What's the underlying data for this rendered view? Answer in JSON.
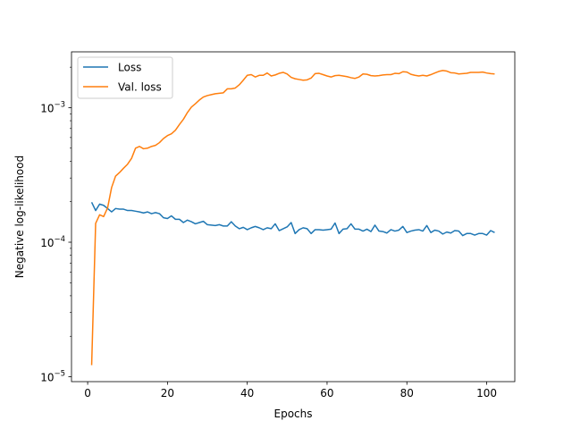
{
  "chart_data": {
    "type": "line",
    "title": "",
    "xlabel": "Epochs",
    "ylabel": "Negative log-likelihood",
    "yscale": "log",
    "xlim": [
      -4.05,
      107.05
    ],
    "ylim": [
      9.2e-06,
      0.0026
    ],
    "xticks": [
      0,
      20,
      40,
      60,
      80,
      100
    ],
    "yticks": [
      {
        "value": 1e-05,
        "base": "10",
        "exp": "−5"
      },
      {
        "value": 0.0001,
        "base": "10",
        "exp": "−4"
      },
      {
        "value": 0.001,
        "base": "10",
        "exp": "−3"
      }
    ],
    "grid": false,
    "legend": "upper left",
    "series": [
      {
        "name": "Loss",
        "color": "#1f77b4",
        "x": [
          1,
          2,
          3,
          4,
          5,
          6,
          7,
          8,
          9,
          10,
          11,
          12,
          13,
          14,
          15,
          16,
          17,
          18,
          19,
          20,
          21,
          22,
          23,
          24,
          25,
          26,
          27,
          28,
          29,
          30,
          31,
          32,
          33,
          34,
          35,
          36,
          37,
          38,
          39,
          40,
          41,
          42,
          43,
          44,
          45,
          46,
          47,
          48,
          49,
          50,
          51,
          52,
          53,
          54,
          55,
          56,
          57,
          58,
          59,
          60,
          61,
          62,
          63,
          64,
          65,
          66,
          67,
          68,
          69,
          70,
          71,
          72,
          73,
          74,
          75,
          76,
          77,
          78,
          79,
          80,
          81,
          82,
          83,
          84,
          85,
          86,
          87,
          88,
          89,
          90,
          91,
          92,
          93,
          94,
          95,
          96,
          97,
          98,
          99,
          100,
          101,
          102
        ],
        "values": [
          0.000198,
          0.000172,
          0.000192,
          0.000188,
          0.000178,
          0.000168,
          0.000178,
          0.000176,
          0.000176,
          0.000172,
          0.000172,
          0.00017,
          0.000168,
          0.000165,
          0.000168,
          0.000163,
          0.000166,
          0.000163,
          0.000152,
          0.00015,
          0.000157,
          0.000148,
          0.000148,
          0.00014,
          0.000146,
          0.000142,
          0.000137,
          0.00014,
          0.000143,
          0.000135,
          0.000134,
          0.000133,
          0.000135,
          0.000132,
          0.000132,
          0.000142,
          0.000132,
          0.000126,
          0.000129,
          0.000124,
          0.000128,
          0.000131,
          0.000128,
          0.000124,
          0.000128,
          0.000126,
          0.000137,
          0.000122,
          0.000126,
          0.00013,
          0.00014,
          0.000116,
          0.000124,
          0.000128,
          0.000126,
          0.000116,
          0.000124,
          0.000124,
          0.000123,
          0.000124,
          0.000125,
          0.000139,
          0.000116,
          0.000125,
          0.000126,
          0.000137,
          0.000125,
          0.000125,
          0.000121,
          0.000125,
          0.00012,
          0.000134,
          0.000121,
          0.00012,
          0.000117,
          0.000124,
          0.000121,
          0.000123,
          0.000131,
          0.000118,
          0.000121,
          0.000123,
          0.000124,
          0.000121,
          0.000133,
          0.000118,
          0.000123,
          0.000121,
          0.000115,
          0.000119,
          0.000117,
          0.000122,
          0.000121,
          0.000112,
          0.000116,
          0.000116,
          0.000113,
          0.000116,
          0.000116,
          0.000113,
          0.000122,
          0.000118
        ]
      },
      {
        "name": "Val. loss",
        "color": "#ff7f0e",
        "x": [
          1,
          2,
          3,
          4,
          5,
          6,
          7,
          8,
          9,
          10,
          11,
          12,
          13,
          14,
          15,
          16,
          17,
          18,
          19,
          20,
          21,
          22,
          23,
          24,
          25,
          26,
          27,
          28,
          29,
          30,
          31,
          32,
          33,
          34,
          35,
          36,
          37,
          38,
          39,
          40,
          41,
          42,
          43,
          44,
          45,
          46,
          47,
          48,
          49,
          50,
          51,
          52,
          53,
          54,
          55,
          56,
          57,
          58,
          59,
          60,
          61,
          62,
          63,
          64,
          65,
          66,
          67,
          68,
          69,
          70,
          71,
          72,
          73,
          74,
          75,
          76,
          77,
          78,
          79,
          80,
          81,
          82,
          83,
          84,
          85,
          86,
          87,
          88,
          89,
          90,
          91,
          92,
          93,
          94,
          95,
          96,
          97,
          98,
          99,
          100,
          101,
          102
        ],
        "values": [
          1.22e-05,
          0.000138,
          0.00016,
          0.000155,
          0.00018,
          0.000255,
          0.00031,
          0.00033,
          0.000355,
          0.00038,
          0.00042,
          0.0005,
          0.000515,
          0.000495,
          0.0005,
          0.000515,
          0.000525,
          0.00055,
          0.00059,
          0.00062,
          0.00064,
          0.00068,
          0.00075,
          0.00082,
          0.00092,
          0.00101,
          0.00107,
          0.00114,
          0.0012,
          0.00123,
          0.00125,
          0.00127,
          0.00128,
          0.00129,
          0.00138,
          0.00138,
          0.0014,
          0.00148,
          0.0016,
          0.00174,
          0.00176,
          0.00169,
          0.00174,
          0.00174,
          0.00181,
          0.00172,
          0.00175,
          0.0018,
          0.00183,
          0.00178,
          0.00168,
          0.00164,
          0.00162,
          0.0016,
          0.00161,
          0.00166,
          0.00179,
          0.0018,
          0.00176,
          0.00172,
          0.00169,
          0.00173,
          0.00174,
          0.00172,
          0.0017,
          0.00167,
          0.00165,
          0.00169,
          0.00178,
          0.00177,
          0.00173,
          0.00172,
          0.00173,
          0.00175,
          0.00176,
          0.00176,
          0.0018,
          0.00179,
          0.00185,
          0.00184,
          0.00177,
          0.00174,
          0.00172,
          0.00174,
          0.00172,
          0.00176,
          0.00181,
          0.00186,
          0.00189,
          0.00187,
          0.00182,
          0.00181,
          0.00178,
          0.00179,
          0.0018,
          0.00183,
          0.00183,
          0.00183,
          0.00184,
          0.00181,
          0.00179,
          0.00178
        ]
      }
    ]
  }
}
